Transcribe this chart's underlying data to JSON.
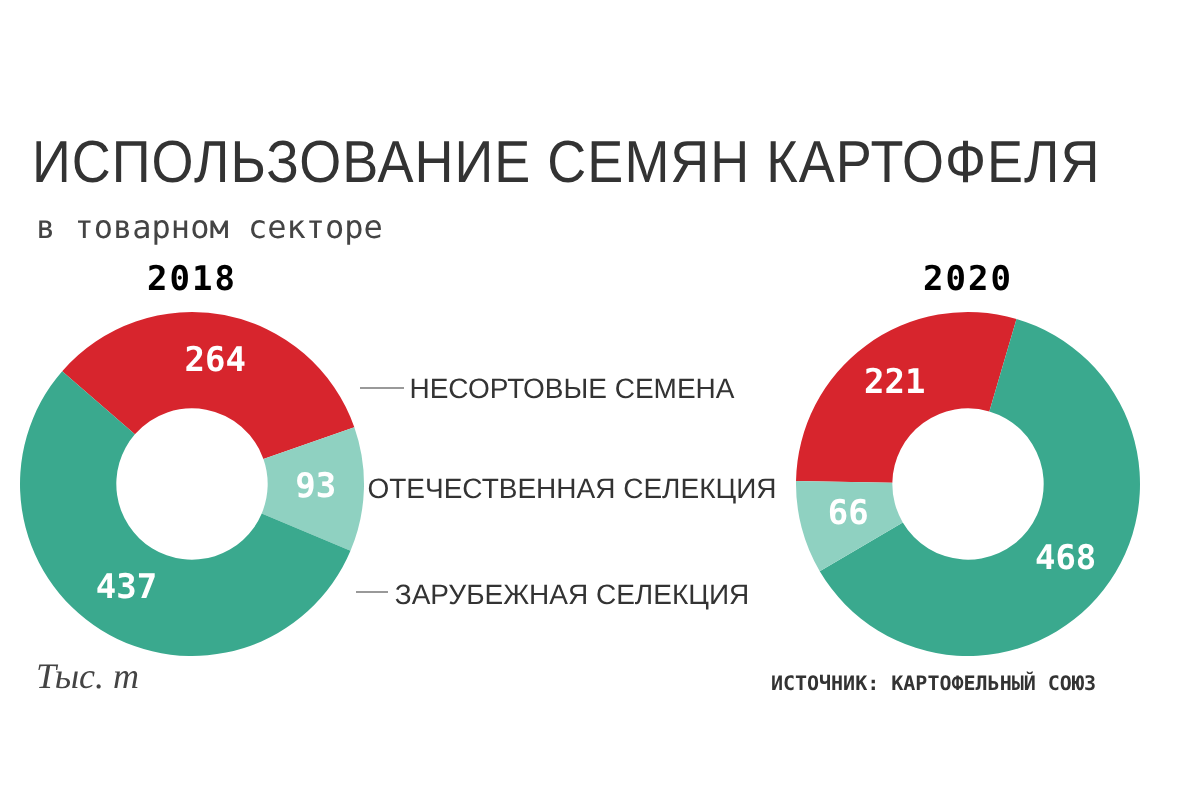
{
  "chart_data": [
    {
      "type": "donut",
      "title": "2018",
      "categories": [
        "НЕСОРТОВЫЕ СЕМЕНА",
        "ОТЕЧЕСТВЕННАЯ СЕЛЕКЦИЯ",
        "ЗАРУБЕЖНАЯ СЕЛЕКЦИЯ"
      ],
      "values": [
        264,
        93,
        437
      ],
      "colors": [
        "#d7252d",
        "#8fd1c1",
        "#3aa98e"
      ],
      "data_labels": true,
      "annotations": [
        "ИСПОЛЬЗОВАНИЕ СЕМЯН КАРТОФЕЛЯ",
        "в товарном секторе",
        "Тыс. т"
      ]
    },
    {
      "type": "donut",
      "title": "2020",
      "categories": [
        null,
        null,
        null
      ],
      "values": [
        221,
        468,
        66
      ],
      "colors": [
        "#d7252d",
        "#3aa98e",
        "#8fd1c1"
      ],
      "data_labels": true,
      "annotations": [
        "ИСТОЧНИК: КАРТОФЕЛЬНЫЙ СОЮЗ"
      ]
    }
  ]
}
